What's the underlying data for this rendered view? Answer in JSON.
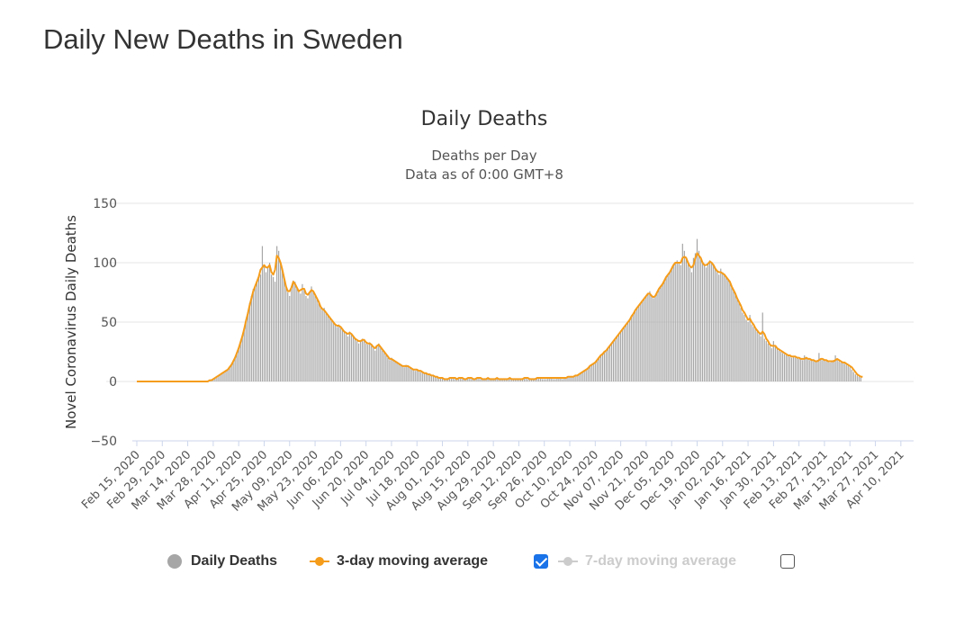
{
  "page": {
    "heading": "Daily New Deaths in Sweden"
  },
  "chart_data": {
    "type": "bar",
    "title": "Daily Deaths",
    "subtitle_lines": [
      "Deaths per Day",
      "Data as of 0:00 GMT+8"
    ],
    "ylabel": "Novel Coronavirus Daily Deaths",
    "xlabel": "",
    "ylim": [
      -50,
      150
    ],
    "yticks": [
      150,
      100,
      50,
      0,
      -50
    ],
    "grid": true,
    "start_date": "2020-02-15",
    "end_date": "2021-04-17",
    "xticks": [
      "Feb 15, 2020",
      "Feb 29, 2020",
      "Mar 14, 2020",
      "Mar 28, 2020",
      "Apr 11, 2020",
      "Apr 25, 2020",
      "May 09, 2020",
      "May 23, 2020",
      "Jun 06, 2020",
      "Jun 20, 2020",
      "Jul 04, 2020",
      "Jul 18, 2020",
      "Aug 01, 2020",
      "Aug 15, 2020",
      "Aug 29, 2020",
      "Sep 12, 2020",
      "Sep 26, 2020",
      "Oct 10, 2020",
      "Oct 24, 2020",
      "Nov 07, 2020",
      "Nov 21, 2020",
      "Dec 05, 2020",
      "Dec 19, 2020",
      "Jan 02, 2021",
      "Jan 16, 2021",
      "Jan 30, 2021",
      "Feb 13, 2021",
      "Feb 27, 2021",
      "Mar 13, 2021",
      "Mar 27, 2021",
      "Apr 10, 2021"
    ],
    "series": [
      {
        "name": "Daily Deaths",
        "kind": "bar",
        "color": "#a6a6a6",
        "visible": true,
        "values": [
          0,
          0,
          0,
          0,
          0,
          0,
          0,
          0,
          0,
          0,
          0,
          0,
          0,
          0,
          0,
          0,
          0,
          0,
          0,
          0,
          0,
          0,
          0,
          0,
          0,
          0,
          0,
          0,
          0,
          0,
          0,
          0,
          0,
          0,
          0,
          0,
          0,
          0,
          0,
          0,
          1,
          1,
          2,
          3,
          4,
          5,
          6,
          7,
          8,
          9,
          10,
          12,
          14,
          17,
          20,
          24,
          28,
          33,
          38,
          45,
          52,
          58,
          66,
          72,
          78,
          80,
          84,
          88,
          90,
          114,
          98,
          92,
          96,
          100,
          90,
          88,
          84,
          114,
          110,
          100,
          95,
          86,
          80,
          75,
          72,
          80,
          85,
          84,
          78,
          76,
          74,
          82,
          78,
          72,
          70,
          75,
          80,
          76,
          72,
          70,
          68,
          62,
          60,
          62,
          58,
          56,
          54,
          52,
          50,
          48,
          46,
          48,
          46,
          44,
          42,
          40,
          38,
          42,
          40,
          38,
          36,
          34,
          32,
          34,
          36,
          34,
          32,
          31,
          33,
          30,
          28,
          26,
          30,
          32,
          28,
          26,
          24,
          22,
          20,
          18,
          20,
          18,
          17,
          16,
          15,
          14,
          13,
          12,
          14,
          13,
          12,
          11,
          10,
          9,
          10,
          9,
          8,
          8,
          7,
          7,
          6,
          6,
          5,
          5,
          4,
          4,
          3,
          3,
          3,
          2,
          2,
          2,
          3,
          3,
          3,
          2,
          2,
          3,
          3,
          2,
          2,
          2,
          3,
          3,
          2,
          2,
          2,
          3,
          3,
          2,
          2,
          2,
          2,
          3,
          2,
          2,
          2,
          2,
          3,
          2,
          2,
          2,
          2,
          2,
          2,
          3,
          2,
          2,
          2,
          2,
          2,
          2,
          2,
          3,
          3,
          2,
          2,
          2,
          2,
          2,
          3,
          3,
          3,
          2,
          2,
          2,
          3,
          3,
          3,
          2,
          2,
          3,
          3,
          3,
          2,
          3,
          3,
          4,
          4,
          4,
          4,
          5,
          5,
          6,
          7,
          8,
          9,
          10,
          12,
          13,
          14,
          15,
          16,
          18,
          20,
          22,
          24,
          25,
          26,
          28,
          30,
          32,
          34,
          36,
          38,
          40,
          42,
          44,
          46,
          48,
          50,
          52,
          55,
          58,
          60,
          62,
          64,
          66,
          68,
          70,
          72,
          74,
          76,
          73,
          70,
          72,
          75,
          78,
          80,
          82,
          85,
          88,
          90,
          92,
          95,
          98,
          100,
          102,
          100,
          98,
          116,
          110,
          105,
          100,
          96,
          92,
          104,
          108,
          120,
          110,
          105,
          100,
          98,
          96,
          100,
          102,
          100,
          98,
          95,
          92,
          90,
          95,
          92,
          90,
          88,
          86,
          84,
          80,
          76,
          74,
          70,
          66,
          62,
          58,
          56,
          52,
          50,
          56,
          48,
          46,
          44,
          42,
          40,
          38,
          58,
          36,
          34,
          32,
          30,
          28,
          34,
          30,
          28,
          26,
          25,
          24,
          23,
          22,
          22,
          21,
          20,
          21,
          20,
          20,
          19,
          19,
          18,
          22,
          20,
          19,
          18,
          18,
          17,
          17,
          18,
          24,
          19,
          18,
          18,
          17,
          17,
          16,
          17,
          18,
          22,
          18,
          17,
          16,
          16,
          15,
          14,
          13,
          12,
          10,
          8,
          6,
          5,
          4,
          4
        ]
      },
      {
        "name": "3-day moving average",
        "kind": "line",
        "color": "#f59c1a",
        "visible": true,
        "values": [
          0,
          0,
          0,
          0,
          0,
          0,
          0,
          0,
          0,
          0,
          0,
          0,
          0,
          0,
          0,
          0,
          0,
          0,
          0,
          0,
          0,
          0,
          0,
          0,
          0,
          0,
          0,
          0,
          0,
          0,
          0,
          0,
          0,
          0,
          0,
          0,
          0,
          0,
          0,
          0,
          1,
          1,
          2,
          3,
          4,
          5,
          6,
          7,
          8,
          9,
          10,
          12,
          14,
          17,
          20,
          24,
          28,
          33,
          38,
          44,
          51,
          57,
          64,
          70,
          76,
          80,
          84,
          88,
          94,
          96,
          98,
          96,
          96,
          98,
          92,
          90,
          94,
          106,
          104,
          100,
          94,
          87,
          80,
          76,
          76,
          79,
          84,
          82,
          79,
          76,
          77,
          78,
          78,
          74,
          73,
          75,
          77,
          76,
          73,
          70,
          67,
          63,
          61,
          60,
          58,
          56,
          54,
          52,
          50,
          48,
          47,
          47,
          46,
          44,
          42,
          41,
          40,
          41,
          40,
          38,
          36,
          35,
          34,
          34,
          35,
          35,
          33,
          32,
          32,
          31,
          29,
          28,
          30,
          31,
          29,
          27,
          25,
          23,
          21,
          19,
          19,
          18,
          17,
          16,
          15,
          14,
          13,
          13,
          13,
          13,
          12,
          11,
          10,
          10,
          10,
          9,
          9,
          8,
          7,
          7,
          6,
          6,
          5,
          5,
          4,
          4,
          3,
          3,
          3,
          2,
          2,
          2,
          3,
          3,
          3,
          3,
          2,
          3,
          3,
          3,
          2,
          2,
          3,
          3,
          3,
          2,
          2,
          3,
          3,
          3,
          2,
          2,
          2,
          3,
          2,
          2,
          2,
          2,
          3,
          2,
          2,
          2,
          2,
          2,
          2,
          3,
          2,
          2,
          2,
          2,
          2,
          2,
          2,
          3,
          3,
          3,
          2,
          2,
          2,
          2,
          3,
          3,
          3,
          3,
          3,
          3,
          3,
          3,
          3,
          3,
          3,
          3,
          3,
          3,
          3,
          3,
          3,
          4,
          4,
          4,
          4,
          5,
          5,
          6,
          7,
          8,
          9,
          10,
          11,
          13,
          14,
          15,
          16,
          18,
          20,
          22,
          23,
          25,
          26,
          28,
          30,
          32,
          34,
          36,
          38,
          40,
          42,
          44,
          46,
          48,
          50,
          52,
          55,
          57,
          60,
          62,
          64,
          66,
          68,
          70,
          72,
          74,
          74,
          72,
          71,
          72,
          75,
          78,
          80,
          82,
          85,
          88,
          90,
          92,
          95,
          98,
          100,
          100,
          100,
          100,
          104,
          105,
          104,
          100,
          97,
          96,
          98,
          104,
          108,
          106,
          104,
          100,
          98,
          98,
          99,
          101,
          100,
          98,
          95,
          93,
          92,
          92,
          91,
          90,
          88,
          86,
          84,
          80,
          77,
          74,
          70,
          67,
          64,
          60,
          58,
          55,
          52,
          53,
          50,
          48,
          45,
          43,
          41,
          40,
          42,
          40,
          36,
          34,
          31,
          30,
          30,
          30,
          28,
          27,
          26,
          25,
          24,
          23,
          22,
          22,
          21,
          21,
          21,
          20,
          20,
          19,
          19,
          19,
          20,
          19,
          19,
          18,
          18,
          17,
          17,
          18,
          19,
          19,
          18,
          18,
          17,
          17,
          17,
          17,
          18,
          19,
          18,
          17,
          16,
          16,
          15,
          14,
          13,
          12,
          10,
          8,
          6,
          5,
          4,
          4
        ]
      },
      {
        "name": "7-day moving average",
        "kind": "line",
        "color": "#cccccc",
        "visible": false,
        "values": []
      }
    ],
    "legend_placement": "bottom-center"
  },
  "legend": {
    "items": [
      {
        "label": "Daily Deaths",
        "color": "#a6a6a6",
        "checkbox": null
      },
      {
        "label": "3-day moving average",
        "color": "#f59c1a",
        "checkbox": true
      },
      {
        "label": "7-day moving average",
        "color": "#cccccc",
        "checkbox": false
      }
    ]
  }
}
